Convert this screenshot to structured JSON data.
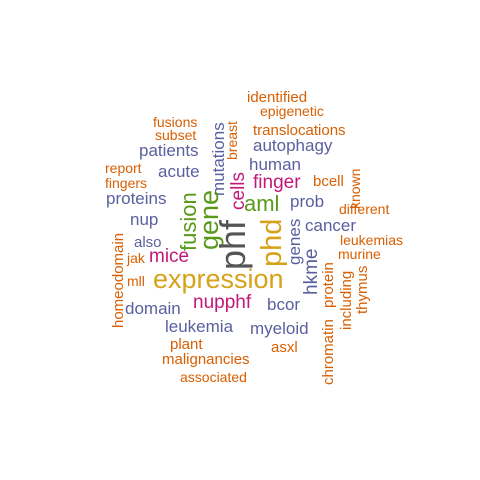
{
  "colors": {
    "orange": "#d95f02",
    "purple": "#5a5f9e",
    "magenta": "#c2187a",
    "green": "#5a9a1a",
    "gold": "#d6a21a",
    "dark": "#555555"
  },
  "words": {
    "identified": "identified",
    "epigenetic": "epigenetic",
    "fusions": "fusions",
    "subset": "subset",
    "breast": "breast",
    "translocations": "translocations",
    "patients": "patients",
    "mutations": "mutations",
    "autophagy": "autophagy",
    "report": "report",
    "known": "known",
    "acute": "acute",
    "human": "human",
    "fingers": "fingers",
    "cells": "cells",
    "finger": "finger",
    "bcell": "bcell",
    "proteins": "proteins",
    "gene": "gene",
    "aml": "aml",
    "prob": "prob",
    "different": "different",
    "nup": "nup",
    "fusion": "fusion",
    "phf": "phf",
    "phd": "phd",
    "genes": "genes",
    "cancer": "cancer",
    "homeodomain": "homeodomain",
    "also": "also",
    "hkme": "hkme",
    "leukemias": "leukemias",
    "jak": "jak",
    "mice": "mice",
    "protein": "protein",
    "murine": "murine",
    "mll": "mll",
    "expression": "expression",
    "including": "including",
    "thymus": "thymus",
    "domain": "domain",
    "nupphf": "nupphf",
    "bcor": "bcor",
    "leukemia": "leukemia",
    "myeloid": "myeloid",
    "chromatin": "chromatin",
    "plant": "plant",
    "asxl": "asxl",
    "malignancies": "malignancies",
    "associated": "associated"
  }
}
